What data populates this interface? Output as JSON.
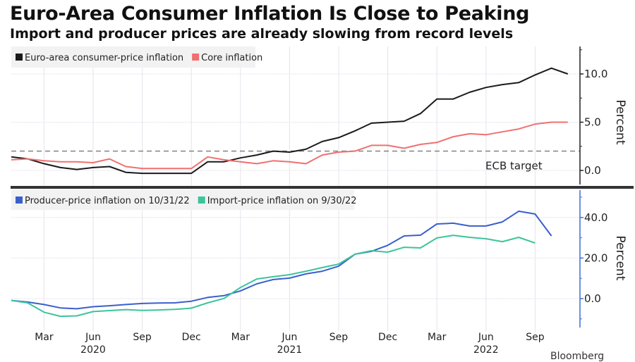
{
  "header": {
    "title": "Euro-Area Consumer Inflation Is Close to Peaking",
    "subtitle": "Import and producer prices are already slowing from record levels"
  },
  "source_text": "Bloomberg",
  "chart_data": [
    {
      "type": "line",
      "panel": "top",
      "title": "Euro-Area Consumer Inflation Is Close to Peaking",
      "ylabel": "Percent",
      "ylim": [
        -2,
        12.9
      ],
      "yticks": [
        0,
        5,
        10
      ],
      "ytick_labels": [
        "0.0",
        "5.0",
        "10.0"
      ],
      "yminor_ticks": [
        2.5,
        7.5,
        12.5
      ],
      "axis_color": "#222222",
      "grid": true,
      "legend_position": "top-left",
      "annotations": [
        {
          "type": "hline",
          "y": 2.0,
          "label": "ECB target",
          "style": "dashed",
          "color": "#8a8a8a"
        }
      ],
      "x_start": "2020-01",
      "series": [
        {
          "name": "Euro-area consumer-price inflation",
          "color": "#1a1a1a",
          "values": [
            1.4,
            1.2,
            0.7,
            0.3,
            0.1,
            0.3,
            0.4,
            -0.2,
            -0.3,
            -0.3,
            -0.3,
            -0.3,
            0.9,
            0.9,
            1.3,
            1.6,
            2.0,
            1.9,
            2.2,
            3.0,
            3.4,
            4.1,
            4.9,
            5.0,
            5.1,
            5.9,
            7.4,
            7.4,
            8.1,
            8.6,
            8.9,
            9.1,
            9.9,
            10.6,
            10.0
          ]
        },
        {
          "name": "Core inflation",
          "color": "#f07070",
          "values": [
            1.1,
            1.2,
            1.0,
            0.9,
            0.9,
            0.8,
            1.2,
            0.4,
            0.2,
            0.2,
            0.2,
            0.2,
            1.4,
            1.1,
            0.9,
            0.7,
            1.0,
            0.9,
            0.7,
            1.6,
            1.9,
            2.0,
            2.6,
            2.6,
            2.3,
            2.7,
            2.9,
            3.5,
            3.8,
            3.7,
            4.0,
            4.3,
            4.8,
            5.0,
            5.0
          ]
        }
      ]
    },
    {
      "type": "line",
      "panel": "bottom",
      "ylabel": "Percent",
      "ylim": [
        -14,
        55
      ],
      "yticks": [
        0,
        20,
        40
      ],
      "ytick_labels": [
        "0.0",
        "20.0",
        "40.0"
      ],
      "yminor_ticks": [
        -10,
        10,
        30,
        50
      ],
      "axis_color": "#3d6fd6",
      "grid": true,
      "legend_position": "top-left",
      "x_start": "2020-01",
      "series": [
        {
          "name": "Producer-price inflation on 10/31/22",
          "color": "#3a5fcd",
          "values": [
            -0.9,
            -1.7,
            -2.9,
            -4.6,
            -5.0,
            -4.0,
            -3.5,
            -2.9,
            -2.4,
            -2.2,
            -2.1,
            -1.3,
            0.6,
            1.5,
            3.8,
            7.3,
            9.4,
            10.1,
            12.2,
            13.5,
            16.0,
            21.9,
            23.3,
            26.3,
            30.9,
            31.3,
            36.8,
            37.2,
            35.8,
            35.8,
            37.8,
            43.1,
            41.7,
            30.9
          ]
        },
        {
          "name": "Import-price inflation on 9/30/22",
          "color": "#3cc49a",
          "values": [
            -0.9,
            -2.1,
            -6.7,
            -8.7,
            -8.5,
            -6.4,
            -5.9,
            -5.4,
            -5.8,
            -5.6,
            -5.3,
            -4.7,
            -2.1,
            0.1,
            5.5,
            9.7,
            10.8,
            11.8,
            13.5,
            15.3,
            17.0,
            21.9,
            23.6,
            22.9,
            25.3,
            25.0,
            29.9,
            31.2,
            30.2,
            29.5,
            28.1,
            30.2,
            27.4
          ]
        }
      ]
    }
  ],
  "x_axis": {
    "tick_labels": [
      "Mar",
      "Jun",
      "Sep",
      "Dec",
      "Mar",
      "Jun",
      "Sep",
      "Dec",
      "Mar",
      "Jun",
      "Sep"
    ],
    "tick_month_index": [
      2,
      5,
      8,
      11,
      14,
      17,
      20,
      23,
      26,
      29,
      32
    ],
    "year_labels": [
      {
        "label": "2020",
        "month_index": 5
      },
      {
        "label": "2021",
        "month_index": 17
      },
      {
        "label": "2022",
        "month_index": 29
      }
    ]
  }
}
